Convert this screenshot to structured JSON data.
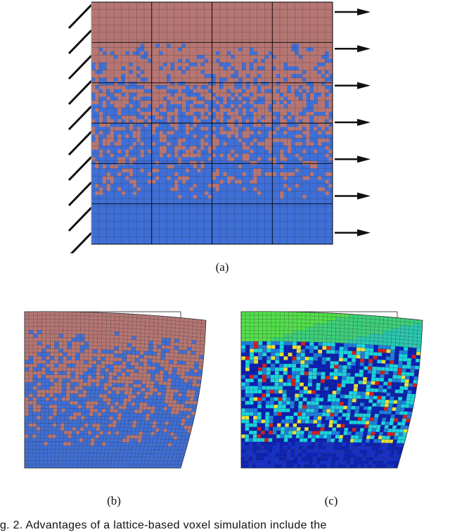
{
  "figure": {
    "panel_a": {
      "label": "(a)"
    },
    "panel_b": {
      "label": "(b)"
    },
    "panel_c": {
      "label": "(c)"
    },
    "caption": "ig. 2.  Advantages of a lattice-based voxel simulation include the"
  },
  "colors": {
    "hard_phase": "#b57673",
    "soft_phase": "#3f6fd6",
    "grid_line": "#000000",
    "arrow": "#111111",
    "stress_low": "#0a1fb5",
    "stress_mid": "#18d6e0",
    "stress_high": "#7be03c",
    "stress_peak": "#d81e1e"
  },
  "icons": {
    "fixed_support": "hatched-wall-icon",
    "load": "right-arrow-icon"
  }
}
